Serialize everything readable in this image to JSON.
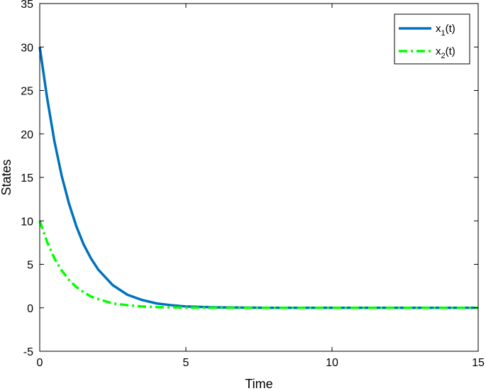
{
  "chart_data": {
    "type": "line",
    "title": "",
    "xlabel": "Time",
    "ylabel": "States",
    "xlim": [
      0,
      15
    ],
    "ylim": [
      -5,
      35
    ],
    "xticks": [
      0,
      5,
      10,
      15
    ],
    "yticks": [
      -5,
      0,
      5,
      10,
      15,
      20,
      25,
      30,
      35
    ],
    "grid": false,
    "legend_position": "top-right",
    "series": [
      {
        "name": "x1(t)",
        "legend_base": "x",
        "legend_sub": "1",
        "legend_suffix": "(t)",
        "color": "#0072BD",
        "style": "solid",
        "x": [
          0,
          0.25,
          0.5,
          0.75,
          1,
          1.25,
          1.5,
          1.75,
          2,
          2.5,
          3,
          3.5,
          4,
          4.5,
          5,
          6,
          7,
          8,
          10,
          12,
          15
        ],
        "y": [
          30,
          24.2,
          19.2,
          15.2,
          12.0,
          9.4,
          7.3,
          5.7,
          4.4,
          2.6,
          1.5,
          0.9,
          0.5,
          0.3,
          0.15,
          0.05,
          0.02,
          0,
          0,
          0,
          0
        ]
      },
      {
        "name": "x2(t)",
        "legend_base": "x",
        "legend_sub": "2",
        "legend_suffix": "(t)",
        "color": "#00FF00",
        "style": "dashdot",
        "x": [
          0,
          0.25,
          0.5,
          0.75,
          1,
          1.25,
          1.5,
          1.75,
          2,
          2.5,
          3,
          3.5,
          4,
          5,
          6,
          7,
          8,
          10,
          12,
          15
        ],
        "y": [
          10,
          7.6,
          5.7,
          4.3,
          3.2,
          2.4,
          1.8,
          1.3,
          1.0,
          0.5,
          0.3,
          0.15,
          0.08,
          0.02,
          0,
          0,
          0,
          0,
          0,
          0
        ]
      }
    ]
  }
}
